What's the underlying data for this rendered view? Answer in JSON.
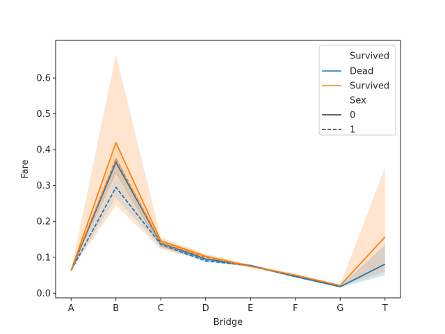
{
  "chart_data": {
    "type": "line",
    "xlabel": "Bridge",
    "ylabel": "Fare",
    "categories": [
      "A",
      "B",
      "C",
      "D",
      "E",
      "F",
      "G",
      "T"
    ],
    "ylim": [
      -0.013,
      0.705
    ],
    "yticks": [
      "0.0",
      "0.1",
      "0.2",
      "0.3",
      "0.4",
      "0.5",
      "0.6"
    ],
    "legend": {
      "placement": "top-right",
      "hue_title": "Survived",
      "style_title": "Sex",
      "style_labels": [
        "0",
        "1"
      ]
    },
    "series": [
      {
        "name": "Dead",
        "sex": "0",
        "color": "#1f77b4",
        "dash": "solid",
        "values": [
          0.063,
          0.365,
          0.14,
          0.095,
          0.077,
          0.047,
          0.018,
          0.081
        ],
        "ci_low": [
          0.063,
          0.33,
          0.13,
          0.09,
          0.074,
          0.044,
          0.016,
          0.05
        ],
        "ci_high": [
          0.063,
          0.38,
          0.148,
          0.099,
          0.08,
          0.05,
          0.02,
          0.135
        ]
      },
      {
        "name": "Survived",
        "sex": "0",
        "color": "#ff7f0e",
        "dash": "solid",
        "values": [
          0.063,
          0.42,
          0.146,
          0.103,
          0.075,
          0.05,
          0.021,
          0.157
        ],
        "ci_low": [
          0.063,
          0.245,
          0.122,
          0.093,
          0.071,
          0.046,
          0.019,
          0.06
        ],
        "ci_high": [
          0.063,
          0.665,
          0.155,
          0.11,
          0.079,
          0.054,
          0.024,
          0.35
        ]
      },
      {
        "name": "Dead",
        "sex": "1",
        "color": "#1f77b4",
        "dash": "dashed",
        "values": [
          0.063,
          0.295,
          0.136,
          0.09,
          0.077,
          0.046,
          0.018,
          null
        ],
        "ci_low": [
          0.063,
          0.265,
          0.128,
          0.086,
          0.074,
          0.043,
          0.016,
          null
        ],
        "ci_high": [
          0.063,
          0.325,
          0.144,
          0.094,
          0.08,
          0.049,
          0.02,
          null
        ]
      },
      {
        "name": "Survived",
        "sex": "1",
        "color": "#ff7f0e",
        "dash": "dashed",
        "values": [
          0.063,
          0.375,
          0.14,
          0.1,
          0.075,
          0.05,
          0.021,
          null
        ],
        "ci_low": [
          0.063,
          0.33,
          0.13,
          0.094,
          0.071,
          0.047,
          0.019,
          null
        ],
        "ci_high": [
          0.063,
          0.42,
          0.15,
          0.106,
          0.079,
          0.053,
          0.023,
          null
        ]
      }
    ]
  }
}
